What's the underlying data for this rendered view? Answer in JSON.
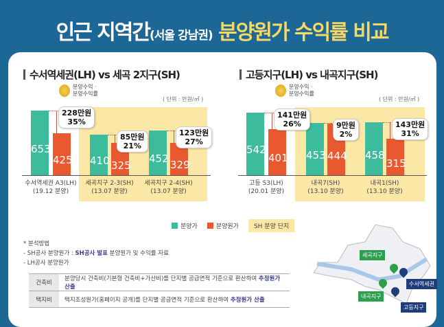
{
  "title": {
    "part1": "인근 지역간",
    "part2": "(서울 강남권)",
    "part3": "분양원가 수익률 비교"
  },
  "colors": {
    "sale_price": "#3dbb9d",
    "cost": "#e9582f",
    "sh_area": "#fbe7a6",
    "background": "#1d6797"
  },
  "chart_data": [
    {
      "type": "bar",
      "title": "수서역세권(LH) vs 세곡 2지구(SH)",
      "unit": "( 단위 : 만원/㎡ )",
      "coin_label": [
        "분양수익 ·",
        "분양수익률"
      ],
      "categories": [
        {
          "name": "수서역세권 A3(LH)",
          "date": "(19.12 분양)",
          "sh": false
        },
        {
          "name": "세곡지구 2-3(SH)",
          "date": "(13.07 분양)",
          "sh": true
        },
        {
          "name": "세곡지구 2-4(SH)",
          "date": "(13.07 분양)",
          "sh": true
        }
      ],
      "series": [
        {
          "name": "분양가",
          "values": [
            653,
            410,
            452
          ]
        },
        {
          "name": "분양원가",
          "values": [
            425,
            325,
            329
          ]
        }
      ],
      "annotations": [
        {
          "amount": "228만원",
          "rate": "35%"
        },
        {
          "amount": "85만원",
          "rate": "21%"
        },
        {
          "amount": "123만원",
          "rate": "27%"
        }
      ]
    },
    {
      "type": "bar",
      "title": "고등지구(LH) vs 내곡지구(SH)",
      "unit": "( 단위 : 만원/㎡ )",
      "coin_label": [
        "분양수익 ·",
        "분양수익률"
      ],
      "categories": [
        {
          "name": "고등 S3(LH)",
          "date": "(20.01 분양)",
          "sh": false
        },
        {
          "name": "내곡7(SH)",
          "date": "(13.10 분양)",
          "sh": true
        },
        {
          "name": "내곡1(SH)",
          "date": "(13.10 분양)",
          "sh": true
        }
      ],
      "series": [
        {
          "name": "분양가",
          "values": [
            542,
            453,
            458
          ]
        },
        {
          "name": "분양원가",
          "values": [
            401,
            444,
            315
          ]
        }
      ],
      "annotations": [
        {
          "amount": "141만원",
          "rate": "26%"
        },
        {
          "amount": "9만원",
          "rate": "2%"
        },
        {
          "amount": "143만원",
          "rate": "31%"
        }
      ]
    }
  ],
  "legend": {
    "sale": "분양가",
    "cost": "분양원가",
    "sh": "SH 분양 단지"
  },
  "notes": {
    "heading": "* 분석방법",
    "sh_prefix": "- SH공사 분양원가 : ",
    "sh_bold": "SH공사 발표",
    "sh_rest": " 분양원가 및 수익률 자료",
    "lh": "- LH공사 분양원가"
  },
  "table": [
    {
      "head": "건축비",
      "text": "분양당시 건축비(기본형 건축비+가산비)를 단지별 공급면적 기준으로 환산하여 ",
      "bold": "추정원가 산출"
    },
    {
      "head": "택지비",
      "text": "택지조성원가(홈페이지 공개)를 단지별 공급면적 기준으로 환산하여 ",
      "bold": "추정원가 산출"
    }
  ],
  "map": {
    "labels": {
      "segok": "세곡지구",
      "suseo": "수서역세권",
      "naegok": "내곡지구",
      "godeung": "고등지구"
    }
  }
}
